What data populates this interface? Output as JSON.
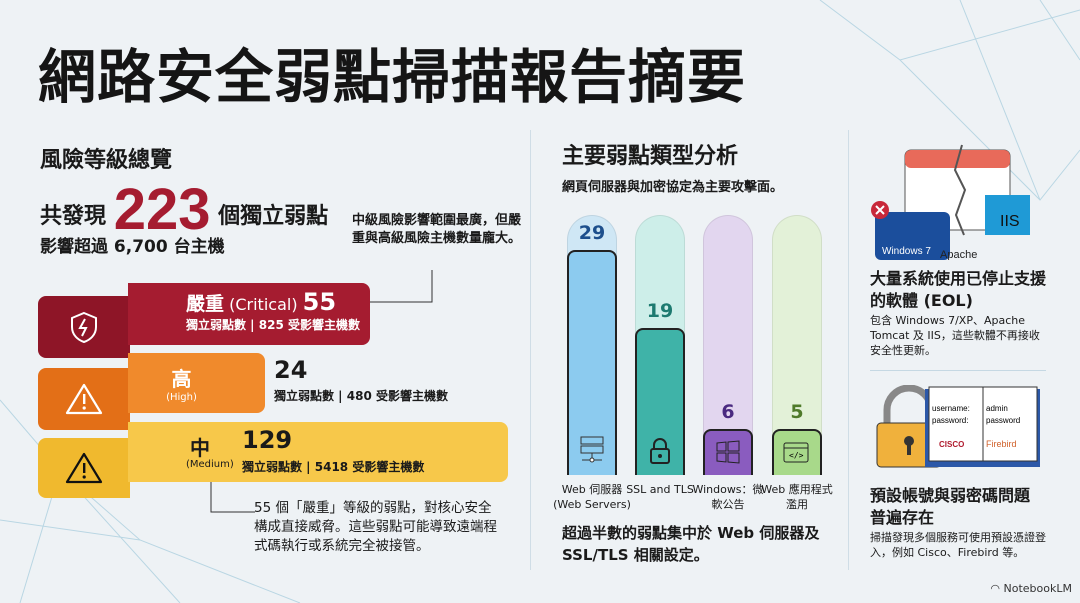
{
  "title": "網路安全弱點掃描報告摘要",
  "overview": {
    "heading": "風險等級總覽",
    "found_prefix": "共發現",
    "total": "223",
    "found_suffix": "個獨立弱點",
    "hosts_line": "影響超過 6,700 台主機",
    "callout_top": "中級風險影響範圍最廣，但嚴重與高級風險主機數量龐大。",
    "callout_bottom": "55 個「嚴重」等級的弱點，對核心安全構成直接威脅。這些弱點可能導致遠端程式碼執行或系統完全被接管。",
    "levels": [
      {
        "name": "嚴重",
        "en": "(Critical)",
        "count": "55",
        "detail": "獨立弱點數 | 825 受影響主機數",
        "color": "#a51c30",
        "icon": "broken-shield-icon"
      },
      {
        "name": "高",
        "en": "(High)",
        "count": "24",
        "detail": "獨立弱點數 | 480 受影響主機數",
        "color": "#ee7f22",
        "icon": "warning-icon"
      },
      {
        "name": "中",
        "en": "(Medium)",
        "count": "129",
        "detail": "獨立弱點數 | 5418 受影響主機數",
        "color": "#f6c443",
        "icon": "warning-icon"
      }
    ]
  },
  "analysis": {
    "heading": "主要弱點類型分析",
    "subtitle": "網頁伺服器與加密協定為主要攻擊面。",
    "conclusion": "超過半數的弱點集中於 Web 伺服器及 SSL/TLS 相關設定。"
  },
  "chart_data": {
    "type": "bar",
    "categories": [
      "Web 伺服器 (Web Servers)",
      "SSL and TLS",
      "Windows：微軟公告",
      "Web 應用程式濫用"
    ],
    "values": [
      29,
      19,
      6,
      5
    ],
    "colors": [
      "#8ccbef",
      "#3fb3a8",
      "#8a5cbf",
      "#a8d98a"
    ],
    "track_colors": [
      "#cfe7f5",
      "#cdeee9",
      "#e2d6ef",
      "#e3f1d8"
    ],
    "value_colors": [
      "#1d4f8c",
      "#1d7a70",
      "#4a2a80",
      "#4f7a2a"
    ],
    "icons": [
      "server-icon",
      "lock-icon",
      "windows-icon",
      "code-window-icon"
    ]
  },
  "eol": {
    "title": "大量系統使用已停止支援的軟體 (EOL)",
    "desc": "包含 Windows 7/XP、Apache Tomcat 及 IIS，這些軟體不再接收安全性更新。",
    "logo_windows": "Windows 7",
    "logo_apache": "Apache",
    "logo_iis": "IIS"
  },
  "creds": {
    "title": "預設帳號與弱密碼問題普遍存在",
    "desc": "掃描發現多個服務可使用預設憑證登入，例如 Cisco、Firebird 等。",
    "book_left": "username:\npassword:",
    "book_right": "admin\npassword",
    "cisco": "CISCO",
    "firebird": "Firebird"
  },
  "watermark": "NotebookLM"
}
